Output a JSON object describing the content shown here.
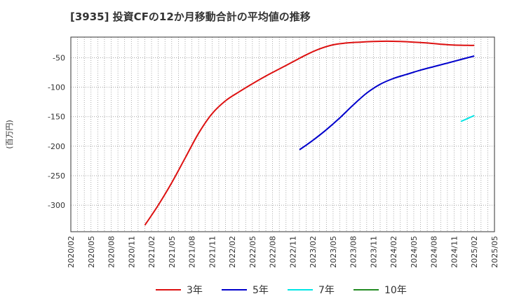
{
  "chart_data": {
    "type": "line",
    "title": "[3935]  投資CFの12か月移動合計の平均値の推移",
    "ylabel": "(百万円)",
    "xlabel": "",
    "ylim": [
      -345,
      -15
    ],
    "yticks": [
      -50,
      -100,
      -150,
      -200,
      -250,
      -300
    ],
    "ytick_labels": [
      "-50",
      "-100",
      "-150",
      "-200",
      "-250",
      "-300"
    ],
    "xticks": [
      "2020/02",
      "2020/05",
      "2020/08",
      "2020/11",
      "2021/02",
      "2021/05",
      "2021/08",
      "2021/11",
      "2022/02",
      "2022/05",
      "2022/08",
      "2022/11",
      "2023/02",
      "2023/05",
      "2023/08",
      "2023/11",
      "2024/02",
      "2024/05",
      "2024/08",
      "2024/11",
      "2025/02",
      "2025/05"
    ],
    "grid": true,
    "legend_position": "bottom",
    "series": [
      {
        "name": "3年",
        "color": "#dd1111",
        "points": [
          [
            "2021/01",
            -334
          ],
          [
            "2021/03",
            -300
          ],
          [
            "2021/05",
            -262
          ],
          [
            "2021/07",
            -220
          ],
          [
            "2021/09",
            -178
          ],
          [
            "2021/11",
            -145
          ],
          [
            "2022/01",
            -123
          ],
          [
            "2022/03",
            -108
          ],
          [
            "2022/05",
            -94
          ],
          [
            "2022/07",
            -81
          ],
          [
            "2022/09",
            -69
          ],
          [
            "2022/11",
            -57
          ],
          [
            "2023/01",
            -45
          ],
          [
            "2023/03",
            -35
          ],
          [
            "2023/05",
            -28
          ],
          [
            "2023/07",
            -25
          ],
          [
            "2023/09",
            -23.5
          ],
          [
            "2023/11",
            -22.5
          ],
          [
            "2024/01",
            -22
          ],
          [
            "2024/03",
            -22.5
          ],
          [
            "2024/05",
            -23.5
          ],
          [
            "2024/07",
            -25
          ],
          [
            "2024/09",
            -27
          ],
          [
            "2024/11",
            -28.5
          ],
          [
            "2025/01",
            -29
          ],
          [
            "2025/02",
            -29
          ]
        ]
      },
      {
        "name": "5年",
        "color": "#0000cc",
        "points": [
          [
            "2022/12",
            -206
          ],
          [
            "2023/02",
            -190
          ],
          [
            "2023/04",
            -172
          ],
          [
            "2023/06",
            -152
          ],
          [
            "2023/08",
            -130
          ],
          [
            "2023/10",
            -110
          ],
          [
            "2023/12",
            -95
          ],
          [
            "2024/02",
            -85
          ],
          [
            "2024/04",
            -78
          ],
          [
            "2024/06",
            -71
          ],
          [
            "2024/08",
            -65
          ],
          [
            "2024/10",
            -59
          ],
          [
            "2024/12",
            -53
          ],
          [
            "2025/02",
            -47
          ]
        ]
      },
      {
        "name": "7年",
        "color": "#00e5e5",
        "points": [
          [
            "2024/12",
            -158
          ],
          [
            "2025/01",
            -153
          ],
          [
            "2025/02",
            -148
          ]
        ]
      },
      {
        "name": "10年",
        "color": "#228b22",
        "points": []
      }
    ]
  }
}
